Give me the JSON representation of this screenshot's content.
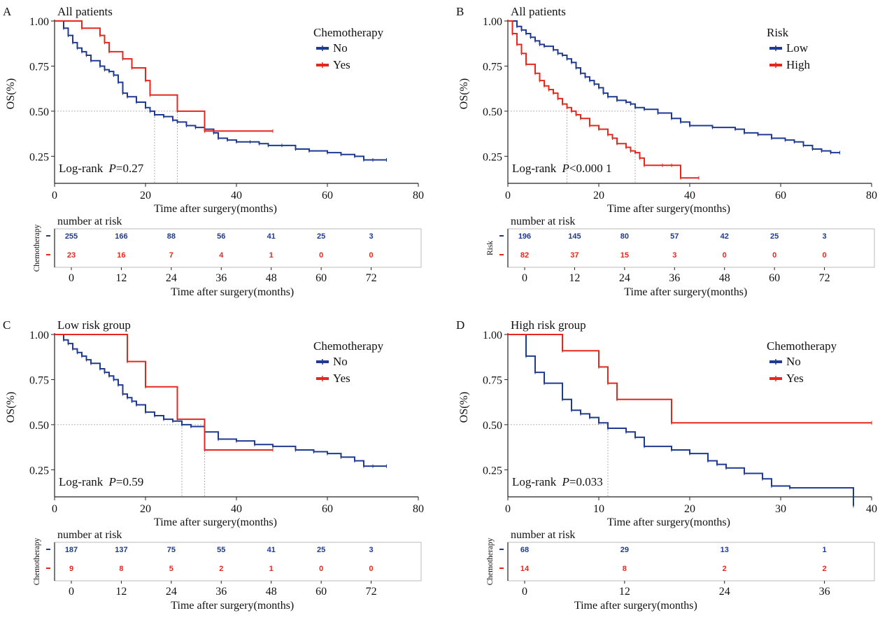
{
  "colors": {
    "blue": "#1f3a93",
    "red": "#e5281e",
    "axis": "#222222",
    "ref": "#9a9a9a"
  },
  "chart_data": [
    {
      "type": "line",
      "panel_letter": "A",
      "title": "All patients",
      "xlabel": "Time after surgery(months)",
      "ylabel": "OS(%)",
      "xlim": [
        0,
        80
      ],
      "ylim": [
        0.1,
        1.0
      ],
      "x_ticks": [
        "0",
        "20",
        "40",
        "60",
        "80"
      ],
      "y_ticks": [
        "1.00",
        "0.75",
        "0.50",
        "0.25"
      ],
      "legend_title": "Chemotherapy",
      "legend_position": "top-right",
      "annotation": {
        "prefix": "Log-rank ",
        "p_label": "P",
        "p_value": "=0.27"
      },
      "median_lines": [
        22,
        27
      ],
      "series": [
        {
          "name": "No",
          "color": "blue",
          "x": [
            0,
            2,
            3,
            4,
            5,
            6,
            7,
            8,
            10,
            11,
            12,
            13,
            14,
            15,
            16,
            18,
            20,
            21,
            22,
            24,
            26,
            27,
            29,
            31,
            33,
            35,
            36,
            38,
            40,
            43,
            45,
            47,
            50,
            53,
            56,
            60,
            63,
            66,
            68,
            70,
            73
          ],
          "y": [
            1.0,
            0.96,
            0.92,
            0.88,
            0.85,
            0.83,
            0.81,
            0.78,
            0.75,
            0.73,
            0.72,
            0.7,
            0.66,
            0.6,
            0.58,
            0.55,
            0.52,
            0.5,
            0.48,
            0.47,
            0.45,
            0.44,
            0.42,
            0.41,
            0.4,
            0.38,
            0.35,
            0.34,
            0.33,
            0.33,
            0.32,
            0.31,
            0.31,
            0.29,
            0.28,
            0.27,
            0.26,
            0.25,
            0.23,
            0.23,
            0.23
          ]
        },
        {
          "name": "Yes",
          "color": "red",
          "x": [
            0,
            6,
            10,
            11,
            12,
            15,
            17,
            20,
            21,
            27,
            33,
            48
          ],
          "y": [
            1.0,
            0.96,
            0.92,
            0.88,
            0.83,
            0.79,
            0.74,
            0.67,
            0.59,
            0.5,
            0.39,
            0.39
          ]
        }
      ],
      "risk_table": {
        "heading": "number at risk",
        "group_label": "Chemotherapy",
        "time_label": "Time after surgery(months)",
        "times": [
          "0",
          "12",
          "24",
          "36",
          "48",
          "60",
          "72"
        ],
        "tick_step": 12,
        "rows": [
          {
            "color": "blue",
            "values": [
              "255",
              "166",
              "88",
              "56",
              "41",
              "25",
              "3"
            ]
          },
          {
            "color": "red",
            "values": [
              "23",
              "16",
              "7",
              "4",
              "1",
              "0",
              "0"
            ]
          }
        ]
      }
    },
    {
      "type": "line",
      "panel_letter": "B",
      "title": "All patients",
      "xlabel": "Time after surgery(months)",
      "ylabel": "OS(%)",
      "xlim": [
        0,
        80
      ],
      "ylim": [
        0.1,
        1.0
      ],
      "x_ticks": [
        "0",
        "20",
        "40",
        "60",
        "80"
      ],
      "y_ticks": [
        "1.00",
        "0.75",
        "0.50",
        "0.25"
      ],
      "legend_title": "Risk",
      "legend_position": "top-right",
      "annotation": {
        "prefix": "Log-rank ",
        "p_label": "P",
        "p_value": "<0.000 1"
      },
      "median_lines": [
        13,
        28
      ],
      "series": [
        {
          "name": "Low",
          "color": "blue",
          "x": [
            0,
            2,
            3,
            4,
            5,
            6,
            7,
            8,
            10,
            11,
            12,
            13,
            14,
            15,
            16,
            17,
            18,
            19,
            20,
            21,
            22,
            24,
            26,
            27,
            28,
            30,
            33,
            36,
            38,
            40,
            45,
            50,
            52,
            55,
            58,
            61,
            63,
            65,
            67,
            69,
            71,
            73
          ],
          "y": [
            1.0,
            0.97,
            0.95,
            0.93,
            0.91,
            0.89,
            0.87,
            0.86,
            0.84,
            0.82,
            0.81,
            0.79,
            0.77,
            0.74,
            0.71,
            0.69,
            0.67,
            0.65,
            0.63,
            0.6,
            0.58,
            0.56,
            0.55,
            0.54,
            0.52,
            0.51,
            0.49,
            0.46,
            0.44,
            0.42,
            0.41,
            0.4,
            0.38,
            0.37,
            0.35,
            0.34,
            0.33,
            0.31,
            0.29,
            0.28,
            0.27,
            0.27
          ]
        },
        {
          "name": "High",
          "color": "red",
          "x": [
            0,
            1,
            2,
            3,
            4,
            6,
            7,
            8,
            9,
            10,
            11,
            12,
            13,
            14,
            15,
            16,
            18,
            20,
            22,
            23,
            24,
            26,
            27,
            28,
            29,
            30,
            34,
            36,
            38,
            42
          ],
          "y": [
            1.0,
            0.93,
            0.87,
            0.82,
            0.76,
            0.71,
            0.67,
            0.64,
            0.62,
            0.6,
            0.57,
            0.54,
            0.52,
            0.5,
            0.48,
            0.46,
            0.42,
            0.4,
            0.37,
            0.35,
            0.32,
            0.3,
            0.28,
            0.27,
            0.24,
            0.2,
            0.2,
            0.2,
            0.13,
            0.13
          ]
        }
      ],
      "risk_table": {
        "heading": "number at risk",
        "group_label": "Risk",
        "time_label": "Time after surgery(months)",
        "times": [
          "0",
          "12",
          "24",
          "36",
          "48",
          "60",
          "72"
        ],
        "tick_step": 12,
        "rows": [
          {
            "color": "blue",
            "values": [
              "196",
              "145",
              "80",
              "57",
              "42",
              "25",
              "3"
            ]
          },
          {
            "color": "red",
            "values": [
              "82",
              "37",
              "15",
              "3",
              "0",
              "0",
              "0"
            ]
          }
        ]
      }
    },
    {
      "type": "line",
      "panel_letter": "C",
      "title": "Low risk group",
      "xlabel": "Time after surgery(months)",
      "ylabel": "OS(%)",
      "xlim": [
        0,
        80
      ],
      "ylim": [
        0.1,
        1.0
      ],
      "x_ticks": [
        "0",
        "20",
        "40",
        "60",
        "80"
      ],
      "y_ticks": [
        "1.00",
        "0.75",
        "0.50",
        "0.25"
      ],
      "legend_title": "Chemotherapy",
      "legend_position": "top-right",
      "annotation": {
        "prefix": "Log-rank ",
        "p_label": "P",
        "p_value": "=0.59"
      },
      "median_lines": [
        28,
        33
      ],
      "series": [
        {
          "name": "No",
          "color": "blue",
          "x": [
            0,
            2,
            3,
            4,
            5,
            6,
            7,
            8,
            10,
            11,
            12,
            13,
            14,
            15,
            16,
            17,
            18,
            20,
            22,
            24,
            26,
            28,
            30,
            33,
            36,
            40,
            44,
            48,
            53,
            57,
            60,
            63,
            66,
            68,
            70,
            73
          ],
          "y": [
            1.0,
            0.97,
            0.95,
            0.92,
            0.9,
            0.88,
            0.86,
            0.84,
            0.81,
            0.79,
            0.77,
            0.75,
            0.72,
            0.67,
            0.65,
            0.63,
            0.61,
            0.57,
            0.55,
            0.53,
            0.52,
            0.5,
            0.49,
            0.46,
            0.42,
            0.41,
            0.39,
            0.38,
            0.36,
            0.35,
            0.34,
            0.32,
            0.3,
            0.27,
            0.27,
            0.27
          ]
        },
        {
          "name": "Yes",
          "color": "red",
          "x": [
            0,
            16,
            20,
            27,
            33,
            48
          ],
          "y": [
            1.0,
            0.85,
            0.71,
            0.53,
            0.36,
            0.36
          ]
        }
      ],
      "risk_table": {
        "heading": "number at risk",
        "group_label": "Chemotherapy",
        "time_label": "Time after surgery(months)",
        "times": [
          "0",
          "12",
          "24",
          "36",
          "48",
          "60",
          "72"
        ],
        "tick_step": 12,
        "rows": [
          {
            "color": "blue",
            "values": [
              "187",
              "137",
              "75",
              "55",
              "41",
              "25",
              "3"
            ]
          },
          {
            "color": "red",
            "values": [
              "9",
              "8",
              "5",
              "2",
              "1",
              "0",
              "0"
            ]
          }
        ]
      }
    },
    {
      "type": "line",
      "panel_letter": "D",
      "title": "High risk group",
      "xlabel": "Time after surgery(months)",
      "ylabel": "OS(%)",
      "xlim": [
        0,
        40
      ],
      "ylim": [
        0.1,
        1.0
      ],
      "x_ticks": [
        "0",
        "10",
        "20",
        "30",
        "40"
      ],
      "y_ticks": [
        "1.00",
        "0.75",
        "0.50",
        "0.25"
      ],
      "legend_title": "Chemotherapy",
      "legend_position": "top-right",
      "annotation": {
        "prefix": "Log-rank ",
        "p_label": "P",
        "p_value": "=0.033"
      },
      "median_lines": [
        11
      ],
      "series": [
        {
          "name": "No",
          "color": "blue",
          "x": [
            0,
            2,
            3,
            4,
            6,
            7,
            8,
            9,
            10,
            11,
            13,
            14,
            15,
            18,
            20,
            22,
            23,
            24,
            26,
            28,
            29,
            31,
            38
          ],
          "y": [
            1.0,
            0.88,
            0.79,
            0.73,
            0.64,
            0.58,
            0.56,
            0.54,
            0.51,
            0.48,
            0.46,
            0.43,
            0.38,
            0.36,
            0.34,
            0.3,
            0.28,
            0.26,
            0.23,
            0.2,
            0.16,
            0.15,
            0.05
          ]
        },
        {
          "name": "Yes",
          "color": "red",
          "x": [
            0,
            6,
            10,
            11,
            12,
            18,
            40
          ],
          "y": [
            1.0,
            0.91,
            0.82,
            0.73,
            0.64,
            0.51,
            0.51
          ]
        }
      ],
      "risk_table": {
        "heading": "number at risk",
        "group_label": "Chemotherapy",
        "time_label": "Time after surgery(months)",
        "times": [
          "0",
          "12",
          "24",
          "36"
        ],
        "tick_step": 12,
        "rows": [
          {
            "color": "blue",
            "values": [
              "68",
              "29",
              "13",
              "1"
            ]
          },
          {
            "color": "red",
            "values": [
              "14",
              "8",
              "2",
              "2"
            ]
          }
        ]
      }
    }
  ]
}
